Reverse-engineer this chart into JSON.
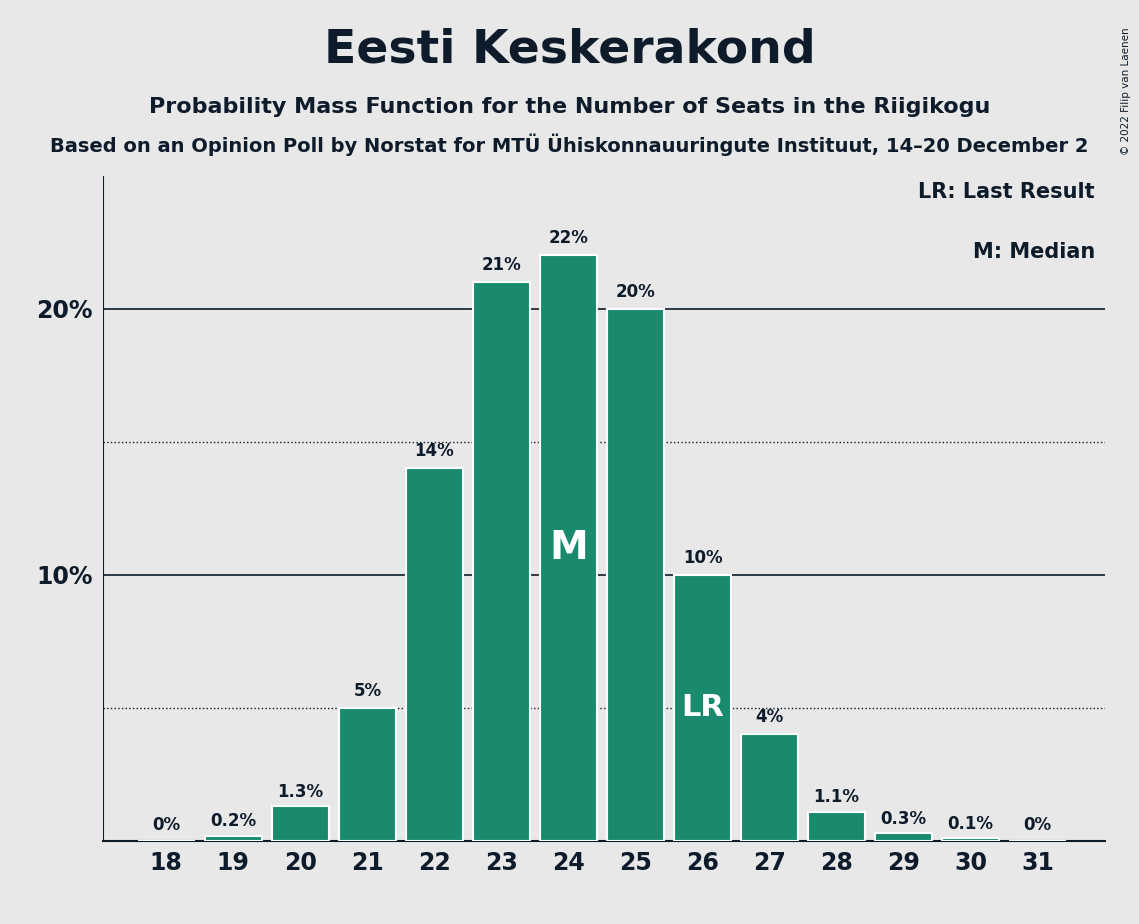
{
  "title": "Eesti Keskerakond",
  "subtitle": "Probability Mass Function for the Number of Seats in the Riigikogu",
  "subtitle2": "Based on an Opinion Poll by Norstat for MTÜ Ühiskonnauuringute Instituut, 14–20 December 2",
  "copyright": "© 2022 Filip van Laenen",
  "seats": [
    18,
    19,
    20,
    21,
    22,
    23,
    24,
    25,
    26,
    27,
    28,
    29,
    30,
    31
  ],
  "probabilities": [
    0.0,
    0.2,
    1.3,
    5.0,
    14.0,
    21.0,
    22.0,
    20.0,
    10.0,
    4.0,
    1.1,
    0.3,
    0.1,
    0.0
  ],
  "labels": [
    "0%",
    "0.2%",
    "1.3%",
    "5%",
    "14%",
    "21%",
    "22%",
    "20%",
    "10%",
    "4%",
    "1.1%",
    "0.3%",
    "0.1%",
    "0%"
  ],
  "bar_color": "#1a8a6e",
  "background_color": "#e8e8e8",
  "text_color": "#0d1b2a",
  "median_seat": 24,
  "last_result_seat": 26,
  "legend_lr": "LR: Last Result",
  "legend_m": "M: Median",
  "ylim": [
    0,
    25
  ],
  "solid_line_values": [
    10.0,
    20.0
  ],
  "dotted_line_values": [
    5.0,
    15.0
  ]
}
